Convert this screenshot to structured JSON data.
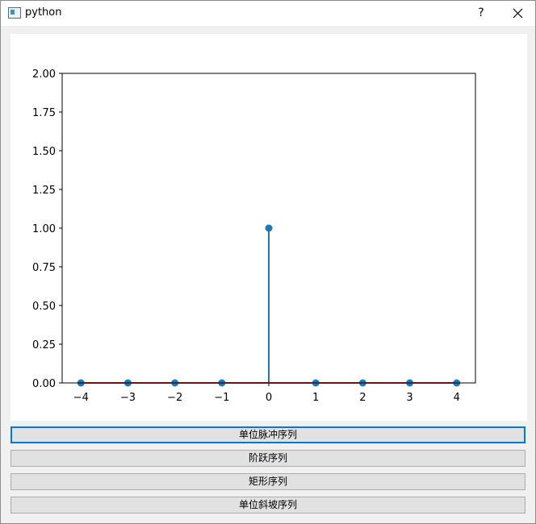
{
  "window": {
    "title": "python",
    "help_label": "?",
    "close_icon": "close-icon"
  },
  "chart_data": {
    "type": "stem",
    "x": [
      -4,
      -3,
      -2,
      -1,
      0,
      1,
      2,
      3,
      4
    ],
    "y": [
      0,
      0,
      0,
      0,
      1,
      0,
      0,
      0,
      0
    ],
    "xticks": [
      "−4",
      "−3",
      "−2",
      "−1",
      "0",
      "1",
      "2",
      "3",
      "4"
    ],
    "yticks": [
      "0.00",
      "0.25",
      "0.50",
      "0.75",
      "1.00",
      "1.25",
      "1.50",
      "1.75",
      "2.00"
    ],
    "xlim": [
      -4.4,
      4.4
    ],
    "ylim": [
      0,
      2
    ],
    "grid": false,
    "marker_color": "#1f77b4",
    "baseline_color": "#d62728"
  },
  "buttons": [
    {
      "label": "单位脉冲序列"
    },
    {
      "label": "阶跃序列"
    },
    {
      "label": "矩形序列"
    },
    {
      "label": "单位斜坡序列"
    }
  ]
}
